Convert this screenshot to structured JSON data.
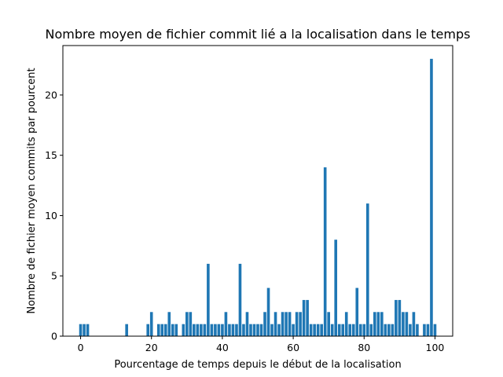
{
  "chart_data": {
    "type": "bar",
    "title": "Nombre moyen de fichier commit lié a la localisation dans le temps",
    "xlabel": "Pourcentage de temps depuis le début de la localisation",
    "ylabel": "Nombre de fichier moyen commits par pourcent",
    "xlim": [
      -5,
      105
    ],
    "ylim": [
      0,
      24.1
    ],
    "xticks": [
      0,
      20,
      40,
      60,
      80,
      100
    ],
    "yticks": [
      0,
      5,
      10,
      15,
      20
    ],
    "bar_color": "#1f77b4",
    "grid": false,
    "x": [
      0,
      1,
      2,
      13,
      19,
      20,
      22,
      23,
      24,
      25,
      26,
      27,
      29,
      30,
      31,
      32,
      33,
      34,
      35,
      36,
      37,
      38,
      39,
      40,
      41,
      42,
      43,
      44,
      45,
      46,
      47,
      48,
      49,
      50,
      51,
      52,
      53,
      54,
      55,
      56,
      57,
      58,
      59,
      60,
      61,
      62,
      63,
      64,
      65,
      66,
      67,
      68,
      69,
      70,
      71,
      72,
      73,
      74,
      75,
      76,
      77,
      78,
      79,
      80,
      81,
      82,
      83,
      84,
      85,
      86,
      87,
      88,
      89,
      90,
      91,
      92,
      93,
      94,
      95,
      97,
      98,
      99,
      100
    ],
    "values": [
      1,
      1,
      1,
      1,
      1,
      2,
      1,
      1,
      1,
      2,
      1,
      1,
      1,
      2,
      2,
      1,
      1,
      1,
      1,
      6,
      1,
      1,
      1,
      1,
      2,
      1,
      1,
      1,
      6,
      1,
      2,
      1,
      1,
      1,
      1,
      2,
      4,
      1,
      2,
      1,
      2,
      2,
      2,
      1,
      2,
      2,
      3,
      3,
      1,
      1,
      1,
      1,
      14,
      2,
      1,
      8,
      1,
      1,
      2,
      1,
      1,
      4,
      1,
      1,
      11,
      1,
      2,
      2,
      2,
      1,
      1,
      1,
      3,
      3,
      2,
      2,
      1,
      2,
      1,
      1,
      1,
      23,
      1
    ]
  }
}
